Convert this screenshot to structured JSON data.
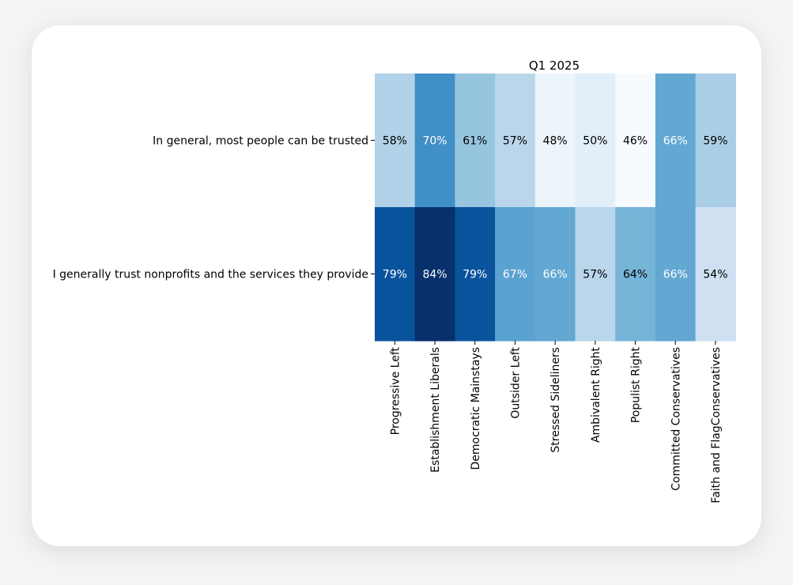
{
  "chart_data": {
    "type": "heatmap",
    "title": "Q1 2025",
    "rows": [
      "In general, most people can be trusted",
      "I generally trust nonprofits and the services they provide"
    ],
    "columns": [
      "Progressive Left",
      "Establishment Liberals",
      "Democratic Mainstays",
      "Outsider Left",
      "Stressed Sideliners",
      "Ambivalent Right",
      "Populist Right",
      "Committed Conservatives",
      "Faith and FlagConservatives"
    ],
    "values": [
      [
        58,
        70,
        61,
        57,
        48,
        50,
        46,
        66,
        59
      ],
      [
        79,
        84,
        79,
        67,
        66,
        57,
        64,
        66,
        54
      ]
    ],
    "value_labels": [
      [
        "58%",
        "70%",
        "61%",
        "57%",
        "48%",
        "50%",
        "46%",
        "66%",
        "59%"
      ],
      [
        "79%",
        "84%",
        "79%",
        "67%",
        "66%",
        "57%",
        "64%",
        "66%",
        "54%"
      ]
    ],
    "colormap": "Blues",
    "value_range": [
      46,
      84
    ],
    "colorbar": false,
    "grid": false
  }
}
